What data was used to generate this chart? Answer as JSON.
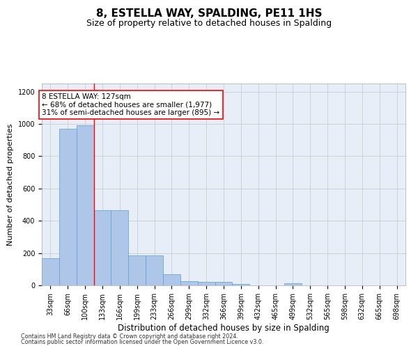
{
  "title": "8, ESTELLA WAY, SPALDING, PE11 1HS",
  "subtitle": "Size of property relative to detached houses in Spalding",
  "xlabel": "Distribution of detached houses by size in Spalding",
  "ylabel": "Number of detached properties",
  "footnote1": "Contains HM Land Registry data © Crown copyright and database right 2024.",
  "footnote2": "Contains public sector information licensed under the Open Government Licence v3.0.",
  "categories": [
    "33sqm",
    "66sqm",
    "100sqm",
    "133sqm",
    "166sqm",
    "199sqm",
    "233sqm",
    "266sqm",
    "299sqm",
    "332sqm",
    "366sqm",
    "399sqm",
    "432sqm",
    "465sqm",
    "499sqm",
    "532sqm",
    "565sqm",
    "598sqm",
    "632sqm",
    "665sqm",
    "698sqm"
  ],
  "values": [
    170,
    970,
    990,
    465,
    465,
    185,
    185,
    70,
    25,
    22,
    20,
    10,
    0,
    0,
    15,
    0,
    0,
    0,
    0,
    0,
    0
  ],
  "bar_color": "#aec6e8",
  "bar_edge_color": "#5a9fd4",
  "vline_x": 2.5,
  "vline_color": "red",
  "annotation_text": "8 ESTELLA WAY: 127sqm\n← 68% of detached houses are smaller (1,977)\n31% of semi-detached houses are larger (895) →",
  "annotation_box_color": "white",
  "annotation_box_edge": "red",
  "ylim": [
    0,
    1250
  ],
  "yticks": [
    0,
    200,
    400,
    600,
    800,
    1000,
    1200
  ],
  "grid_color": "#cccccc",
  "bg_color": "#e8eef7",
  "title_fontsize": 11,
  "subtitle_fontsize": 9,
  "xlabel_fontsize": 8.5,
  "ylabel_fontsize": 8,
  "tick_fontsize": 7,
  "annotation_fontsize": 7.5,
  "footnote_fontsize": 5.8
}
